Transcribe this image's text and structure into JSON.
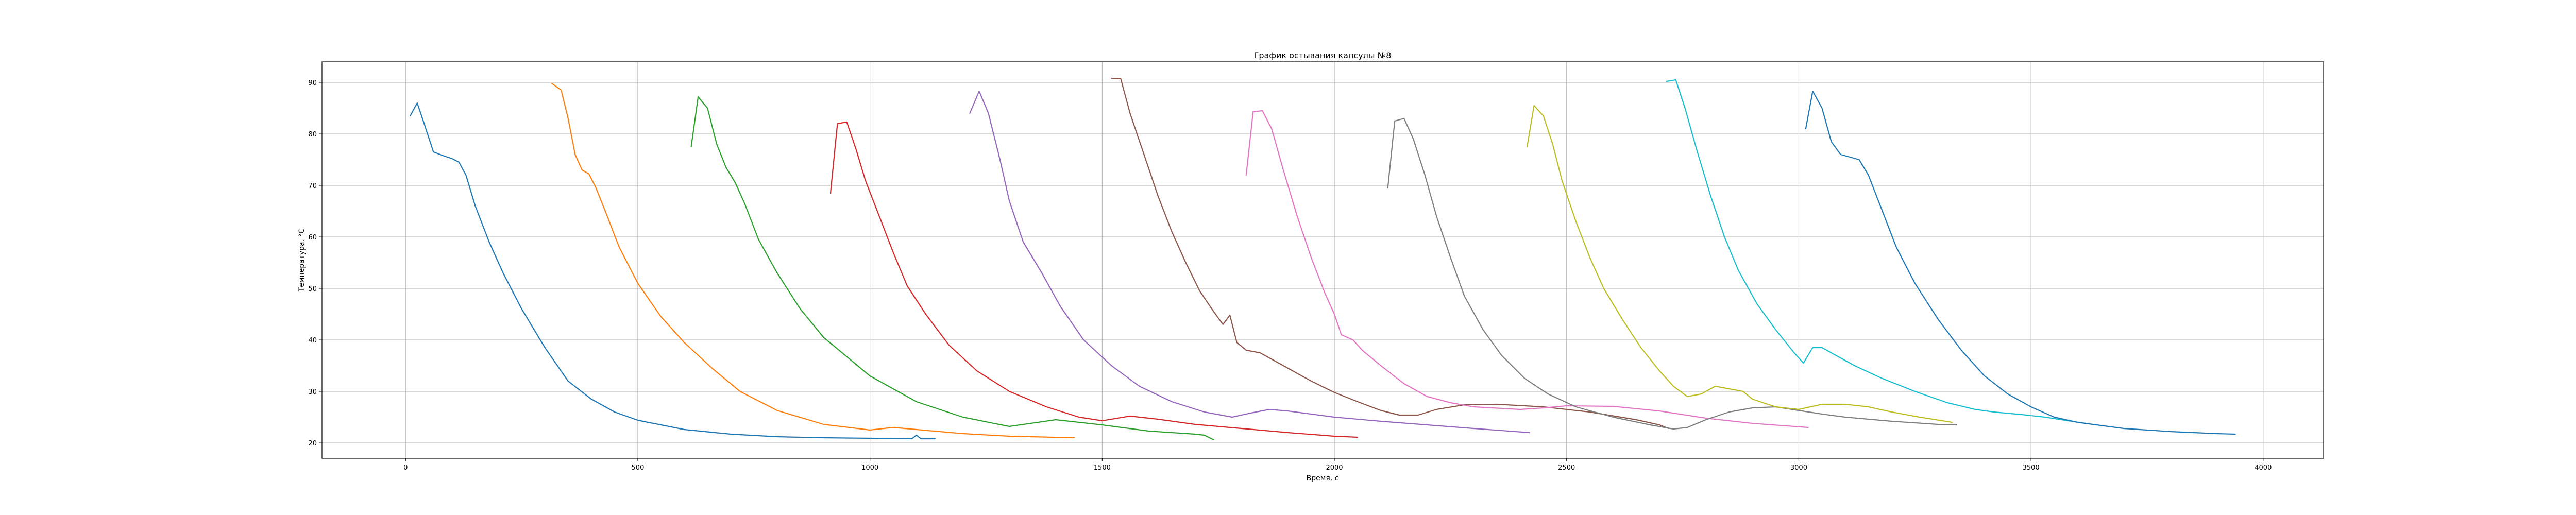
{
  "chart_data": {
    "type": "line",
    "title": "График остывания капсулы №8",
    "xlabel": "Время, с",
    "ylabel": "Температура, °С",
    "xlim": [
      -180,
      4130
    ],
    "ylim": [
      17,
      94
    ],
    "xticks": [
      0,
      500,
      1000,
      1500,
      2000,
      2500,
      3000,
      3500,
      4000
    ],
    "yticks": [
      20,
      30,
      40,
      50,
      60,
      70,
      80,
      90
    ],
    "grid": true,
    "series": [
      {
        "color": "#1f77b4",
        "points": [
          [
            10,
            83.5
          ],
          [
            25,
            86
          ],
          [
            40,
            82
          ],
          [
            60,
            76.5
          ],
          [
            80,
            75.8
          ],
          [
            100,
            75.2
          ],
          [
            115,
            74.5
          ],
          [
            130,
            72
          ],
          [
            150,
            66
          ],
          [
            180,
            59
          ],
          [
            210,
            53
          ],
          [
            250,
            46
          ],
          [
            300,
            38.5
          ],
          [
            350,
            32
          ],
          [
            400,
            28.5
          ],
          [
            450,
            26
          ],
          [
            500,
            24.4
          ],
          [
            600,
            22.6
          ],
          [
            700,
            21.7
          ],
          [
            800,
            21.2
          ],
          [
            900,
            21
          ],
          [
            1000,
            20.9
          ],
          [
            1090,
            20.8
          ],
          [
            1100,
            21.5
          ],
          [
            1110,
            20.8
          ],
          [
            1140,
            20.8
          ]
        ]
      },
      {
        "color": "#ff7f0e",
        "points": [
          [
            315,
            89.8
          ],
          [
            335,
            88.5
          ],
          [
            350,
            83
          ],
          [
            365,
            76
          ],
          [
            380,
            73
          ],
          [
            395,
            72.2
          ],
          [
            410,
            69.5
          ],
          [
            430,
            65
          ],
          [
            460,
            58
          ],
          [
            500,
            51
          ],
          [
            550,
            44.5
          ],
          [
            600,
            39.5
          ],
          [
            660,
            34.5
          ],
          [
            720,
            30
          ],
          [
            800,
            26.3
          ],
          [
            900,
            23.6
          ],
          [
            1000,
            22.5
          ],
          [
            1050,
            23
          ],
          [
            1100,
            22.6
          ],
          [
            1200,
            21.8
          ],
          [
            1300,
            21.3
          ],
          [
            1440,
            21
          ]
        ]
      },
      {
        "color": "#2ca02c",
        "points": [
          [
            615,
            77.5
          ],
          [
            630,
            87.2
          ],
          [
            650,
            85
          ],
          [
            670,
            78
          ],
          [
            690,
            73.5
          ],
          [
            710,
            70.5
          ],
          [
            730,
            66.5
          ],
          [
            760,
            59.5
          ],
          [
            800,
            53
          ],
          [
            850,
            46
          ],
          [
            900,
            40.5
          ],
          [
            1000,
            33
          ],
          [
            1100,
            28
          ],
          [
            1200,
            25
          ],
          [
            1300,
            23.2
          ],
          [
            1400,
            24.5
          ],
          [
            1500,
            23.5
          ],
          [
            1600,
            22.3
          ],
          [
            1700,
            21.7
          ],
          [
            1720,
            21.5
          ],
          [
            1740,
            20.6
          ]
        ]
      },
      {
        "color": "#d62728",
        "points": [
          [
            915,
            68.5
          ],
          [
            930,
            82
          ],
          [
            950,
            82.3
          ],
          [
            970,
            77
          ],
          [
            990,
            71
          ],
          [
            1020,
            64
          ],
          [
            1050,
            57
          ],
          [
            1080,
            50.5
          ],
          [
            1120,
            45
          ],
          [
            1170,
            39
          ],
          [
            1230,
            34
          ],
          [
            1300,
            30
          ],
          [
            1380,
            27
          ],
          [
            1450,
            25
          ],
          [
            1500,
            24.3
          ],
          [
            1560,
            25.2
          ],
          [
            1620,
            24.6
          ],
          [
            1700,
            23.6
          ],
          [
            1800,
            22.8
          ],
          [
            1900,
            22
          ],
          [
            2000,
            21.3
          ],
          [
            2050,
            21.1
          ]
        ]
      },
      {
        "color": "#9467bd",
        "points": [
          [
            1215,
            84
          ],
          [
            1235,
            88.3
          ],
          [
            1255,
            84
          ],
          [
            1280,
            75
          ],
          [
            1300,
            67
          ],
          [
            1330,
            59
          ],
          [
            1370,
            53
          ],
          [
            1410,
            46.5
          ],
          [
            1460,
            40
          ],
          [
            1520,
            35
          ],
          [
            1580,
            31
          ],
          [
            1650,
            28
          ],
          [
            1720,
            26
          ],
          [
            1780,
            25
          ],
          [
            1820,
            25.8
          ],
          [
            1860,
            26.5
          ],
          [
            1900,
            26.2
          ],
          [
            2000,
            25
          ],
          [
            2100,
            24.2
          ],
          [
            2200,
            23.5
          ],
          [
            2300,
            22.8
          ],
          [
            2420,
            22
          ]
        ]
      },
      {
        "color": "#8c564b",
        "points": [
          [
            1520,
            90.8
          ],
          [
            1540,
            90.7
          ],
          [
            1560,
            84
          ],
          [
            1590,
            76
          ],
          [
            1620,
            68
          ],
          [
            1650,
            61
          ],
          [
            1680,
            55
          ],
          [
            1710,
            49.5
          ],
          [
            1740,
            45.5
          ],
          [
            1760,
            43
          ],
          [
            1775,
            44.8
          ],
          [
            1790,
            39.5
          ],
          [
            1810,
            38
          ],
          [
            1840,
            37.5
          ],
          [
            1870,
            36
          ],
          [
            1900,
            34.5
          ],
          [
            1950,
            32
          ],
          [
            2000,
            29.8
          ],
          [
            2050,
            28
          ],
          [
            2100,
            26.3
          ],
          [
            2140,
            25.4
          ],
          [
            2180,
            25.4
          ],
          [
            2220,
            26.5
          ],
          [
            2280,
            27.4
          ],
          [
            2350,
            27.5
          ],
          [
            2450,
            27
          ],
          [
            2550,
            26
          ],
          [
            2650,
            24.5
          ],
          [
            2700,
            23.5
          ],
          [
            2720,
            22.8
          ]
        ]
      },
      {
        "color": "#e377c2",
        "points": [
          [
            1810,
            72
          ],
          [
            1825,
            84.3
          ],
          [
            1845,
            84.5
          ],
          [
            1865,
            81
          ],
          [
            1890,
            73
          ],
          [
            1920,
            64
          ],
          [
            1950,
            56
          ],
          [
            1980,
            49
          ],
          [
            2000,
            45
          ],
          [
            2015,
            41
          ],
          [
            2040,
            40
          ],
          [
            2060,
            38
          ],
          [
            2100,
            35
          ],
          [
            2150,
            31.5
          ],
          [
            2200,
            29
          ],
          [
            2250,
            27.8
          ],
          [
            2300,
            27
          ],
          [
            2400,
            26.5
          ],
          [
            2450,
            26.8
          ],
          [
            2500,
            27.2
          ],
          [
            2600,
            27.1
          ],
          [
            2700,
            26.2
          ],
          [
            2800,
            24.8
          ],
          [
            2900,
            23.8
          ],
          [
            3020,
            23
          ]
        ]
      },
      {
        "color": "#7f7f7f",
        "points": [
          [
            2115,
            69.5
          ],
          [
            2130,
            82.5
          ],
          [
            2150,
            83
          ],
          [
            2170,
            79
          ],
          [
            2195,
            72
          ],
          [
            2220,
            64
          ],
          [
            2250,
            56
          ],
          [
            2280,
            48.5
          ],
          [
            2320,
            42
          ],
          [
            2360,
            37
          ],
          [
            2410,
            32.5
          ],
          [
            2460,
            29.5
          ],
          [
            2520,
            27
          ],
          [
            2600,
            25
          ],
          [
            2680,
            23.5
          ],
          [
            2730,
            22.7
          ],
          [
            2760,
            23
          ],
          [
            2800,
            24.5
          ],
          [
            2850,
            26
          ],
          [
            2900,
            26.8
          ],
          [
            2950,
            27
          ],
          [
            3000,
            26.3
          ],
          [
            3050,
            25.6
          ],
          [
            3100,
            25
          ],
          [
            3200,
            24.2
          ],
          [
            3300,
            23.6
          ],
          [
            3340,
            23.5
          ]
        ]
      },
      {
        "color": "#bcbd22",
        "points": [
          [
            2415,
            77.5
          ],
          [
            2430,
            85.5
          ],
          [
            2450,
            83.5
          ],
          [
            2470,
            78
          ],
          [
            2490,
            71
          ],
          [
            2520,
            63
          ],
          [
            2550,
            56
          ],
          [
            2580,
            50
          ],
          [
            2620,
            44
          ],
          [
            2660,
            38.5
          ],
          [
            2700,
            34
          ],
          [
            2730,
            31
          ],
          [
            2760,
            29
          ],
          [
            2790,
            29.5
          ],
          [
            2820,
            31
          ],
          [
            2850,
            30.5
          ],
          [
            2880,
            30
          ],
          [
            2900,
            28.5
          ],
          [
            2950,
            27
          ],
          [
            3000,
            26.5
          ],
          [
            3050,
            27.5
          ],
          [
            3100,
            27.5
          ],
          [
            3150,
            27
          ],
          [
            3200,
            26
          ],
          [
            3260,
            25
          ],
          [
            3330,
            24
          ]
        ]
      },
      {
        "color": "#17becf",
        "points": [
          [
            2715,
            90.2
          ],
          [
            2735,
            90.5
          ],
          [
            2755,
            85
          ],
          [
            2780,
            77
          ],
          [
            2810,
            68
          ],
          [
            2840,
            60
          ],
          [
            2870,
            53.5
          ],
          [
            2910,
            47
          ],
          [
            2950,
            42
          ],
          [
            2990,
            37.5
          ],
          [
            3010,
            35.5
          ],
          [
            3030,
            38.5
          ],
          [
            3050,
            38.5
          ],
          [
            3080,
            37
          ],
          [
            3120,
            35
          ],
          [
            3180,
            32.5
          ],
          [
            3250,
            30
          ],
          [
            3320,
            27.8
          ],
          [
            3380,
            26.5
          ],
          [
            3420,
            26
          ],
          [
            3480,
            25.5
          ],
          [
            3530,
            25
          ],
          [
            3580,
            24.3
          ],
          [
            3640,
            23.5
          ]
        ]
      },
      {
        "color": "#1f77b4",
        "points": [
          [
            3015,
            81
          ],
          [
            3030,
            88.3
          ],
          [
            3050,
            85
          ],
          [
            3070,
            78.5
          ],
          [
            3090,
            76
          ],
          [
            3110,
            75.5
          ],
          [
            3130,
            75
          ],
          [
            3150,
            72
          ],
          [
            3180,
            65
          ],
          [
            3210,
            58
          ],
          [
            3250,
            51
          ],
          [
            3300,
            44
          ],
          [
            3350,
            38
          ],
          [
            3400,
            33
          ],
          [
            3450,
            29.5
          ],
          [
            3500,
            27
          ],
          [
            3550,
            25
          ],
          [
            3600,
            24
          ],
          [
            3700,
            22.8
          ],
          [
            3800,
            22.2
          ],
          [
            3900,
            21.8
          ],
          [
            3940,
            21.7
          ]
        ]
      }
    ]
  }
}
